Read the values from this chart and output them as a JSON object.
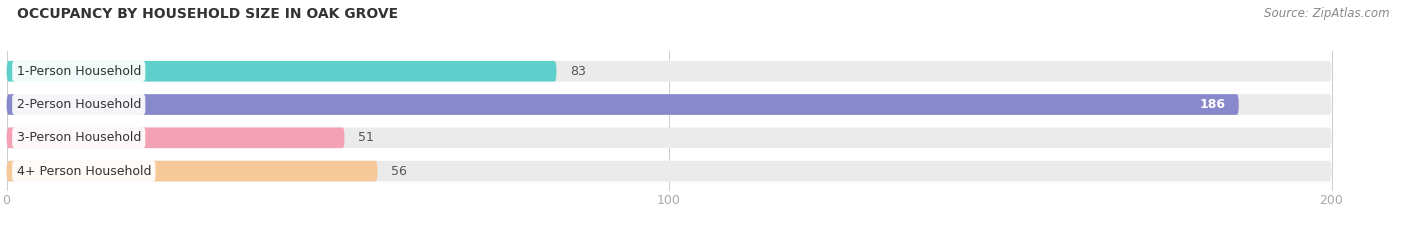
{
  "title": "OCCUPANCY BY HOUSEHOLD SIZE IN OAK GROVE",
  "source": "Source: ZipAtlas.com",
  "categories": [
    "1-Person Household",
    "2-Person Household",
    "3-Person Household",
    "4+ Person Household"
  ],
  "values": [
    83,
    186,
    51,
    56
  ],
  "bar_colors": [
    "#5ecfca",
    "#8888cc",
    "#f4a0b5",
    "#f5c99a"
  ],
  "bg_colors": [
    "#ebebeb",
    "#ebebeb",
    "#ebebeb",
    "#ebebeb"
  ],
  "xlim": [
    -1,
    207
  ],
  "xticks": [
    0,
    100,
    200
  ],
  "bar_height": 0.62,
  "label_color_outside": "#555555",
  "label_color_inside": "#ffffff",
  "title_fontsize": 10,
  "source_fontsize": 8.5,
  "label_fontsize": 9,
  "tick_fontsize": 9,
  "category_fontsize": 9,
  "background_color": "#ffffff"
}
